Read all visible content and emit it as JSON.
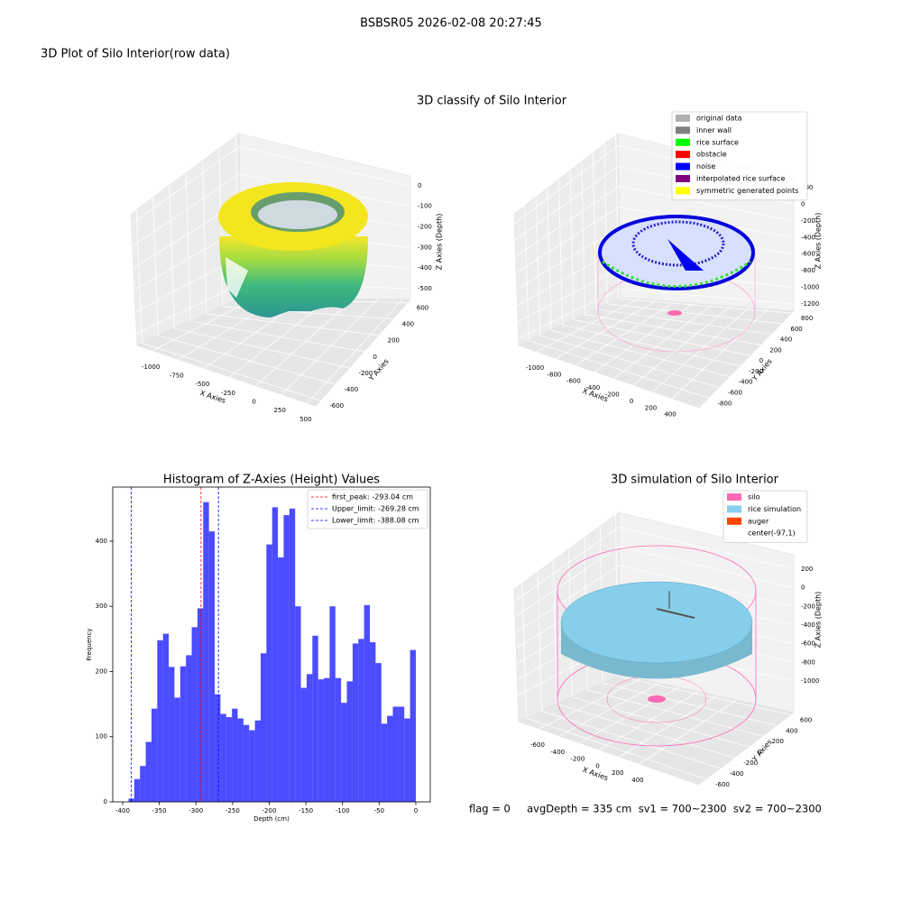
{
  "title": "BSBSR05 2026-02-08 20:27:45",
  "chart_data": [
    {
      "type": "scatter3d",
      "title": "3D Plot of Silo Interior(row data)",
      "xlabel": "X Axies",
      "ylabel": "Y Axies",
      "zlabel": "Z Axies (Depth)",
      "xlim": [
        -1150,
        580
      ],
      "xticks": [
        -1000,
        -750,
        -500,
        -250,
        0,
        250,
        500
      ],
      "ylim": [
        -665,
        639
      ],
      "yticks": [
        -600,
        -400,
        -200,
        0,
        200,
        400,
        600
      ],
      "zlim": [
        -553,
        48
      ],
      "zticks": [
        0,
        -100,
        -200,
        -300,
        -400,
        -500
      ]
    },
    {
      "type": "scatter3d",
      "title": "3D classify of Silo Interior",
      "xlabel": "X Axies",
      "ylabel": "Y Axies",
      "zlabel": "Z Axies (Depth)",
      "xlim": [
        -1187,
        680
      ],
      "xticks": [
        -1000,
        -800,
        -600,
        -400,
        -200,
        0,
        200,
        400
      ],
      "ylim": [
        -982,
        836
      ],
      "yticks": [
        -800,
        -600,
        -400,
        -200,
        0,
        200,
        400,
        600,
        800
      ],
      "zlim": [
        -1287,
        319
      ],
      "zticks": [
        200,
        0,
        -200,
        -400,
        -600,
        -800,
        -1000,
        -1200
      ],
      "legend": [
        {
          "name": "original data",
          "color": "#b0b0b0"
        },
        {
          "name": "inner wall",
          "color": "#808080"
        },
        {
          "name": "rice surface",
          "color": "#00ff00"
        },
        {
          "name": "obstacle",
          "color": "#ff0000"
        },
        {
          "name": "noise",
          "color": "#0000ff"
        },
        {
          "name": "interpolated rice surface",
          "color": "#800080"
        },
        {
          "name": "symmetric generated points",
          "color": "#ffff00"
        }
      ]
    },
    {
      "type": "histogram",
      "title": "Histogram of Z-Axies (Height) Values",
      "xlabel": "Depth (cm)",
      "ylabel": "Frequency",
      "color": "#0000ff",
      "bins": [
        -392,
        -384.16,
        -376.32,
        -368.48,
        -360.64,
        -352.8,
        -344.96,
        -337.12,
        -329.28,
        -321.44,
        -313.6,
        -305.76,
        -297.92,
        -290.08,
        -282.24,
        -274.4,
        -266.56,
        -258.72,
        -250.88,
        -243.04,
        -235.2,
        -227.36,
        -219.52,
        -211.68,
        -203.84,
        -196,
        -188.16,
        -180.32,
        -172.48,
        -164.64,
        -156.8,
        -148.96,
        -141.12,
        -133.28,
        -125.44,
        -117.6,
        -109.76,
        -101.92,
        -94.08,
        -86.24,
        -78.4,
        -70.56,
        -62.72,
        -54.88,
        -47.04,
        -39.2,
        -31.36,
        -23.52,
        -15.68,
        -7.84,
        0
      ],
      "values": [
        5,
        35,
        55,
        92,
        143,
        248,
        258,
        207,
        160,
        208,
        225,
        268,
        297,
        460,
        415,
        165,
        135,
        130,
        143,
        128,
        118,
        110,
        125,
        228,
        395,
        452,
        375,
        440,
        450,
        300,
        175,
        196,
        255,
        188,
        190,
        300,
        190,
        152,
        185,
        243,
        250,
        302,
        245,
        213,
        120,
        132,
        146,
        146,
        128,
        233
      ],
      "xlim": [
        -413.5,
        19.7
      ],
      "xticks": [
        -400,
        -350,
        -300,
        -250,
        -200,
        -150,
        -100,
        -50,
        0
      ],
      "ylim": [
        0,
        483
      ],
      "yticks": [
        0,
        100,
        200,
        300,
        400
      ],
      "lines": [
        {
          "name": "first_peak: -293.04 cm",
          "value": -293.04,
          "color": "#ff0000"
        },
        {
          "name": "Upper_limit: -269.28 cm",
          "value": -269.28,
          "color": "#0000ff"
        },
        {
          "name": "Lower_limit: -388.08 cm",
          "value": -388.08,
          "color": "#0000ff"
        }
      ],
      "legend_loc": "upper right"
    },
    {
      "type": "surface3d",
      "title": "3D simulation of Silo Interior",
      "xlabel": "X Axies",
      "ylabel": "Y Axies",
      "zlabel": "Z Axies (Depth)",
      "xlim": [
        -807,
        995
      ],
      "xticks": [
        -600,
        -400,
        -200,
        0,
        200,
        400
      ],
      "ylim": [
        -702,
        640
      ],
      "yticks": [
        -600,
        -400,
        -200,
        0,
        200,
        400,
        600
      ],
      "zlim": [
        -1339,
        355
      ],
      "zticks": [
        200,
        0,
        -200,
        -400,
        -600,
        -800,
        -1000
      ],
      "legend": [
        {
          "name": "silo",
          "color": "#ff69b4"
        },
        {
          "name": "rice simulation",
          "color": "#87ceeb"
        },
        {
          "name": "auger",
          "color": "#ff4500"
        },
        {
          "name": "center(-97,1)",
          "color": "#ffffff"
        }
      ]
    }
  ],
  "footer": "flag = 0     avgDepth = 335 cm  sv1 = 700~2300  sv2 = 700~2300"
}
